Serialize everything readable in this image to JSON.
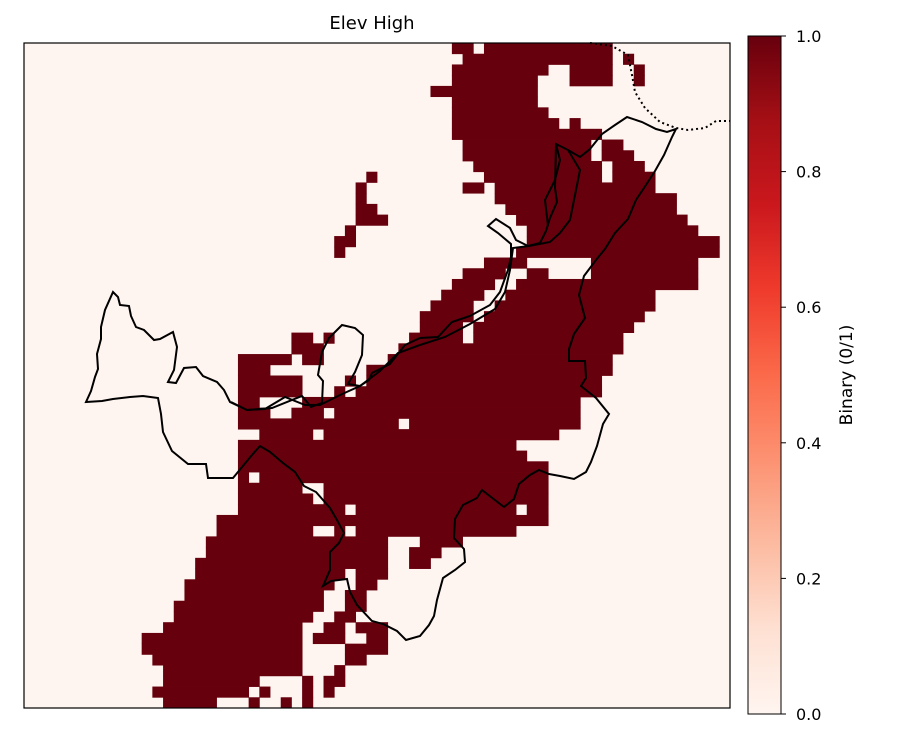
{
  "chart_data": {
    "type": "heatmap",
    "title": "Elev High",
    "colorbar": {
      "label": "Binary (0/1)",
      "range": [
        0.0,
        1.0
      ],
      "ticks": [
        "0.0",
        "0.2",
        "0.4",
        "0.6",
        "0.8",
        "1.0"
      ],
      "colormap": "Reds",
      "low_color": "#fff5f0",
      "high_color": "#67000d"
    },
    "grid": {
      "rows": 62,
      "cols": 66,
      "value_1_runs": [
        [
          0,
          40,
          41
        ],
        [
          0,
          43,
          54
        ],
        [
          1,
          41,
          54
        ],
        [
          1,
          56,
          56
        ],
        [
          2,
          40,
          49
        ],
        [
          2,
          51,
          54
        ],
        [
          2,
          57,
          57
        ],
        [
          3,
          40,
          47
        ],
        [
          3,
          51,
          54
        ],
        [
          3,
          57,
          57
        ],
        [
          4,
          38,
          48
        ],
        [
          4,
          50,
          49
        ],
        [
          5,
          40,
          48
        ],
        [
          5,
          50,
          49
        ],
        [
          6,
          40,
          49
        ],
        [
          6,
          51,
          50
        ],
        [
          7,
          40,
          49
        ],
        [
          7,
          51,
          51
        ],
        [
          7,
          53,
          52
        ],
        [
          8,
          40,
          51
        ],
        [
          8,
          52,
          53
        ],
        [
          9,
          41,
          52
        ],
        [
          9,
          54,
          55
        ],
        [
          10,
          41,
          52
        ],
        [
          10,
          54,
          56
        ],
        [
          11,
          42,
          53
        ],
        [
          11,
          55,
          57
        ],
        [
          12,
          43,
          53
        ],
        [
          12,
          55,
          58
        ],
        [
          12,
          32,
          32
        ],
        [
          13,
          41,
          42
        ],
        [
          13,
          44,
          53
        ],
        [
          13,
          54,
          58
        ],
        [
          13,
          31,
          31
        ],
        [
          14,
          44,
          60
        ],
        [
          14,
          31,
          31
        ],
        [
          15,
          45,
          60
        ],
        [
          15,
          31,
          32
        ],
        [
          16,
          46,
          61
        ],
        [
          16,
          31,
          33
        ],
        [
          17,
          47,
          62
        ],
        [
          17,
          30,
          30
        ],
        [
          18,
          47,
          64
        ],
        [
          18,
          29,
          30
        ],
        [
          19,
          46,
          64
        ],
        [
          19,
          29,
          29
        ],
        [
          20,
          43,
          62
        ],
        [
          21,
          41,
          44
        ],
        [
          21,
          47,
          62
        ],
        [
          22,
          40,
          43
        ],
        [
          22,
          46,
          62
        ],
        [
          23,
          39,
          42
        ],
        [
          23,
          45,
          58
        ],
        [
          24,
          38,
          41
        ],
        [
          24,
          44,
          58
        ],
        [
          25,
          37,
          41
        ],
        [
          25,
          43,
          57
        ],
        [
          26,
          37,
          40
        ],
        [
          26,
          42,
          56
        ],
        [
          27,
          36,
          40
        ],
        [
          27,
          42,
          55
        ],
        [
          27,
          25,
          26
        ],
        [
          27,
          28,
          28
        ],
        [
          28,
          35,
          55
        ],
        [
          28,
          25,
          27
        ],
        [
          29,
          34,
          54
        ],
        [
          29,
          20,
          24
        ],
        [
          29,
          26,
          27
        ],
        [
          30,
          33,
          54
        ],
        [
          30,
          20,
          22
        ],
        [
          30,
          32,
          32
        ],
        [
          31,
          32,
          53
        ],
        [
          31,
          20,
          25
        ],
        [
          31,
          30,
          30
        ],
        [
          32,
          31,
          53
        ],
        [
          32,
          20,
          25
        ],
        [
          32,
          29,
          29
        ],
        [
          33,
          29,
          51
        ],
        [
          33,
          20,
          21
        ],
        [
          33,
          25,
          28
        ],
        [
          34,
          29,
          51
        ],
        [
          34,
          20,
          22
        ],
        [
          34,
          25,
          27
        ],
        [
          35,
          27,
          51
        ],
        [
          35,
          20,
          29
        ],
        [
          36,
          22,
          26
        ],
        [
          36,
          28,
          49
        ],
        [
          37,
          20,
          46
        ],
        [
          38,
          20,
          47
        ],
        [
          39,
          20,
          48
        ],
        [
          40,
          20,
          48
        ],
        [
          41,
          20,
          48
        ],
        [
          42,
          20,
          48
        ],
        [
          43,
          20,
          48
        ],
        [
          44,
          18,
          48
        ],
        [
          45,
          18,
          45
        ],
        [
          45,
          22,
          25
        ],
        [
          46,
          17,
          35
        ],
        [
          46,
          37,
          40
        ],
        [
          47,
          17,
          33
        ],
        [
          47,
          36,
          38
        ],
        [
          48,
          16,
          33
        ],
        [
          48,
          36,
          37
        ],
        [
          49,
          16,
          33
        ],
        [
          50,
          15,
          32
        ],
        [
          51,
          15,
          31
        ],
        [
          52,
          14,
          31
        ],
        [
          53,
          14,
          30
        ],
        [
          54,
          13,
          33
        ],
        [
          55,
          11,
          33
        ],
        [
          56,
          11,
          29
        ],
        [
          56,
          30,
          33
        ],
        [
          57,
          12,
          28
        ],
        [
          57,
          29,
          31
        ],
        [
          58,
          13,
          28
        ],
        [
          58,
          29,
          29
        ],
        [
          59,
          13,
          29
        ],
        [
          60,
          12,
          28
        ],
        [
          61,
          13,
          26
        ]
      ],
      "value_0_holes": [
        [
          33,
          22,
          25
        ],
        [
          34,
          23,
          24
        ],
        [
          36,
          27,
          27
        ],
        [
          40,
          21,
          21
        ],
        [
          41,
          26,
          26
        ],
        [
          42,
          27,
          27
        ],
        [
          41,
          27,
          27
        ],
        [
          43,
          46,
          46
        ],
        [
          43,
          30,
          30
        ],
        [
          45,
          27,
          28
        ],
        [
          45,
          30,
          30
        ],
        [
          46,
          34,
          36
        ],
        [
          49,
          30,
          30
        ],
        [
          49,
          34,
          34
        ],
        [
          50,
          29,
          30
        ],
        [
          50,
          33,
          34
        ],
        [
          51,
          28,
          29
        ],
        [
          51,
          32,
          34
        ],
        [
          52,
          28,
          29
        ],
        [
          52,
          33,
          33
        ],
        [
          53,
          27,
          28
        ],
        [
          53,
          32,
          32
        ],
        [
          54,
          26,
          27
        ],
        [
          54,
          30,
          30
        ],
        [
          55,
          26,
          26
        ],
        [
          55,
          30,
          31
        ],
        [
          56,
          26,
          29
        ],
        [
          56,
          29,
          29
        ],
        [
          57,
          26,
          28
        ],
        [
          57,
          29,
          29
        ],
        [
          58,
          26,
          28
        ],
        [
          59,
          22,
          25
        ],
        [
          59,
          27,
          27
        ],
        [
          60,
          21,
          21
        ],
        [
          60,
          23,
          25
        ],
        [
          60,
          27,
          27
        ],
        [
          61,
          18,
          20
        ],
        [
          61,
          22,
          23
        ],
        [
          61,
          25,
          25
        ],
        [
          35,
          35,
          35
        ],
        [
          37,
          46,
          46
        ],
        [
          38,
          47,
          47
        ],
        [
          20,
          47,
          52
        ],
        [
          21,
          49,
          52
        ],
        [
          4,
          48,
          49
        ],
        [
          5,
          48,
          49
        ],
        [
          6,
          49,
          50
        ],
        [
          7,
          50,
          50
        ],
        [
          2,
          49,
          50
        ],
        [
          3,
          48,
          50
        ],
        [
          12,
          38,
          40
        ],
        [
          13,
          38,
          40
        ]
      ]
    }
  }
}
